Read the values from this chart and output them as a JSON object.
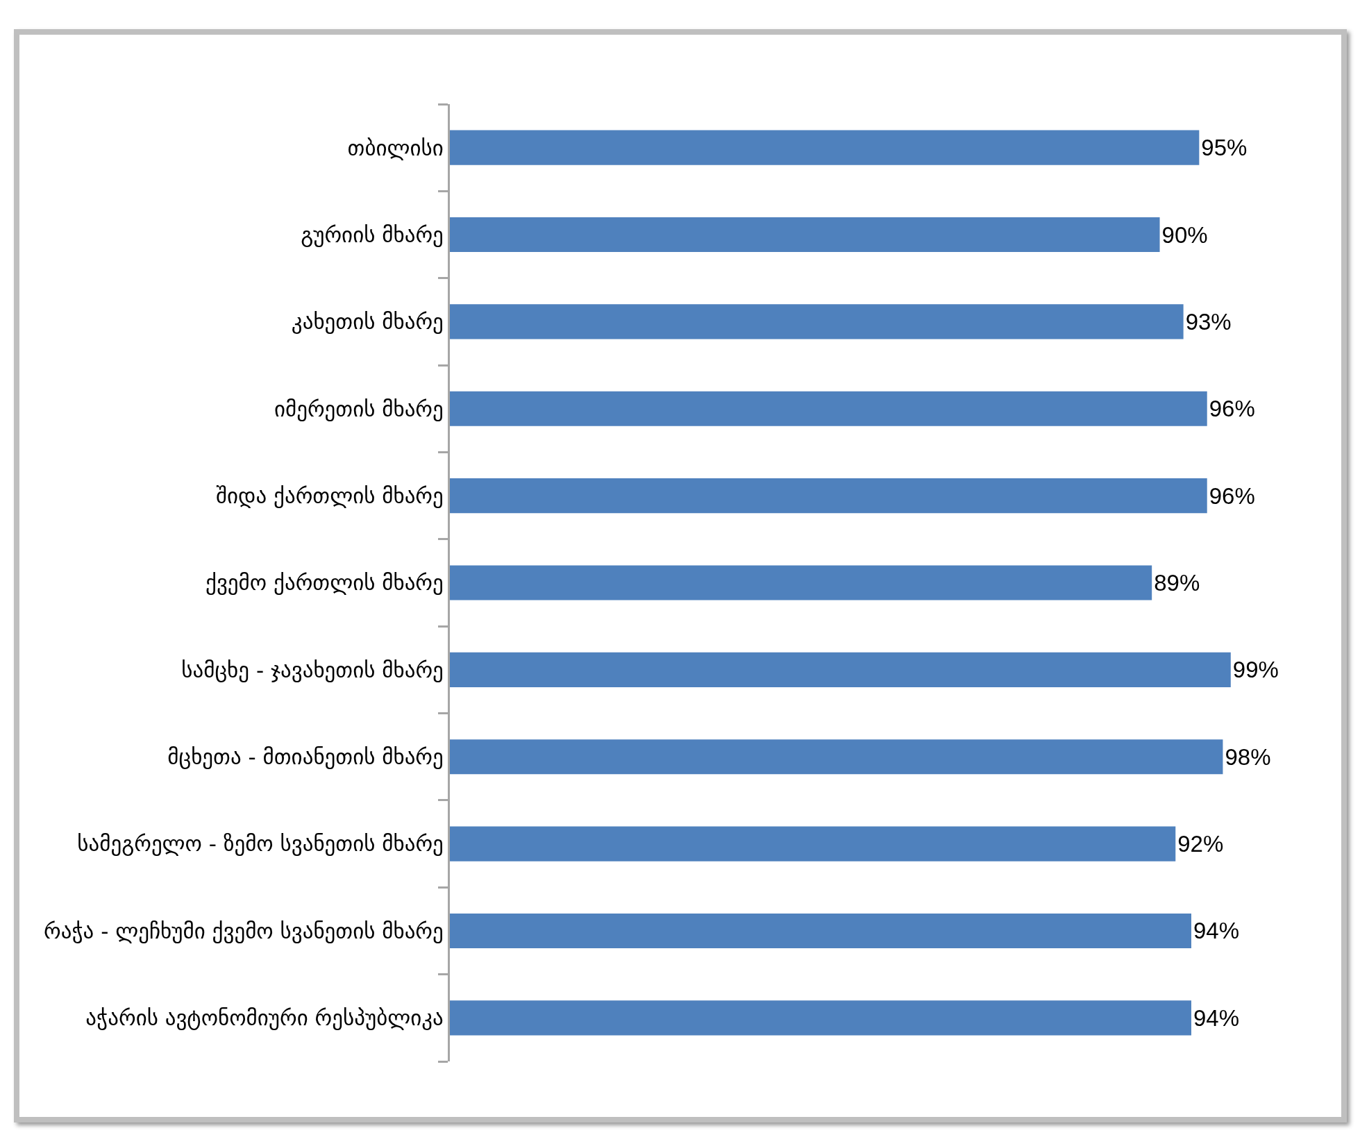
{
  "chart_data": {
    "type": "bar",
    "orientation": "horizontal",
    "categories": [
      "თბილისი",
      "გურიის მხარე",
      "კახეთის მხარე",
      "იმერეთის მხარე",
      "შიდა ქართლის მხარე",
      "ქვემო ქართლის მხარე",
      "სამცხე - ჯავახეთის მხარე",
      "მცხეთა - მთიანეთის მხარე",
      "სამეგრელო - ზემო სვანეთის მხარე",
      "რაჭა - ლეჩხუმი ქვემო სვანეთის მხარე",
      "აჭარის ავტონომიური რესპუბლიკა"
    ],
    "values": [
      95,
      90,
      93,
      96,
      96,
      89,
      99,
      98,
      92,
      94,
      94
    ],
    "value_labels": [
      "95%",
      "90%",
      "93%",
      "96%",
      "96%",
      "89%",
      "99%",
      "98%",
      "92%",
      "94%",
      "94%"
    ],
    "color": "#4f81bd",
    "tick_labels": "y"
  }
}
